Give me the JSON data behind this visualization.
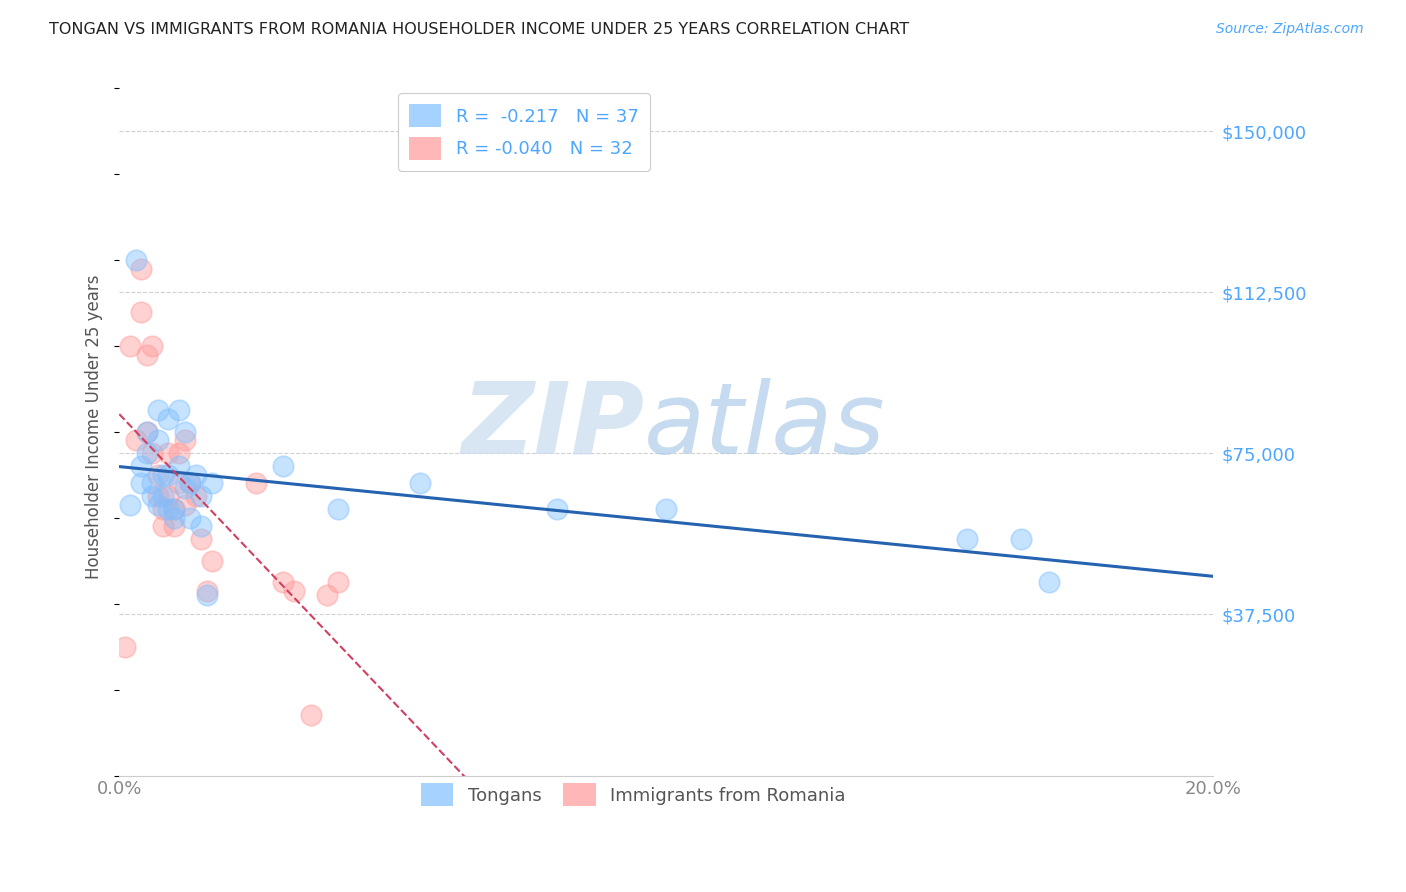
{
  "title": "TONGAN VS IMMIGRANTS FROM ROMANIA HOUSEHOLDER INCOME UNDER 25 YEARS CORRELATION CHART",
  "source": "Source: ZipAtlas.com",
  "ylabel": "Householder Income Under 25 years",
  "xlim": [
    0.0,
    0.2
  ],
  "ylim": [
    0,
    162500
  ],
  "ytick_values": [
    37500,
    75000,
    112500,
    150000
  ],
  "ytick_labels": [
    "$37,500",
    "$75,000",
    "$112,500",
    "$150,000"
  ],
  "grid_color": "#cccccc",
  "background_color": "#ffffff",
  "blue_color": "#7fbfff",
  "pink_color": "#ff9999",
  "blue_line_color": "#2563b0",
  "pink_line_color": "#d04060",
  "label_color": "#4da6ff",
  "watermark_zip": "ZIP",
  "watermark_atlas": "atlas",
  "watermark_color_zip": "#c8d8f0",
  "watermark_color_atlas": "#b0c8e8",
  "legend_R_blue": " -0.217",
  "legend_N_blue": "37",
  "legend_R_pink": "-0.040",
  "legend_N_pink": "32",
  "tongans_x": [
    0.002,
    0.003,
    0.004,
    0.004,
    0.005,
    0.005,
    0.006,
    0.006,
    0.007,
    0.007,
    0.007,
    0.008,
    0.008,
    0.009,
    0.009,
    0.009,
    0.01,
    0.01,
    0.011,
    0.011,
    0.012,
    0.012,
    0.013,
    0.013,
    0.014,
    0.015,
    0.015,
    0.016,
    0.017,
    0.03,
    0.04,
    0.055,
    0.08,
    0.1,
    0.155,
    0.165,
    0.17
  ],
  "tongans_y": [
    63000,
    120000,
    72000,
    68000,
    80000,
    75000,
    68000,
    65000,
    85000,
    78000,
    63000,
    70000,
    65000,
    83000,
    70000,
    62000,
    62000,
    60000,
    85000,
    72000,
    80000,
    67000,
    68000,
    60000,
    70000,
    65000,
    58000,
    42000,
    68000,
    72000,
    62000,
    68000,
    62000,
    62000,
    55000,
    55000,
    45000
  ],
  "romania_x": [
    0.001,
    0.002,
    0.003,
    0.004,
    0.004,
    0.005,
    0.005,
    0.006,
    0.006,
    0.007,
    0.007,
    0.008,
    0.008,
    0.009,
    0.009,
    0.01,
    0.01,
    0.011,
    0.011,
    0.012,
    0.012,
    0.013,
    0.014,
    0.015,
    0.016,
    0.017,
    0.025,
    0.03,
    0.032,
    0.035,
    0.038,
    0.04
  ],
  "romania_y": [
    30000,
    100000,
    78000,
    118000,
    108000,
    98000,
    80000,
    100000,
    75000,
    70000,
    65000,
    62000,
    58000,
    75000,
    65000,
    62000,
    58000,
    75000,
    68000,
    78000,
    63000,
    68000,
    65000,
    55000,
    43000,
    50000,
    68000,
    45000,
    43000,
    14000,
    42000,
    45000
  ]
}
